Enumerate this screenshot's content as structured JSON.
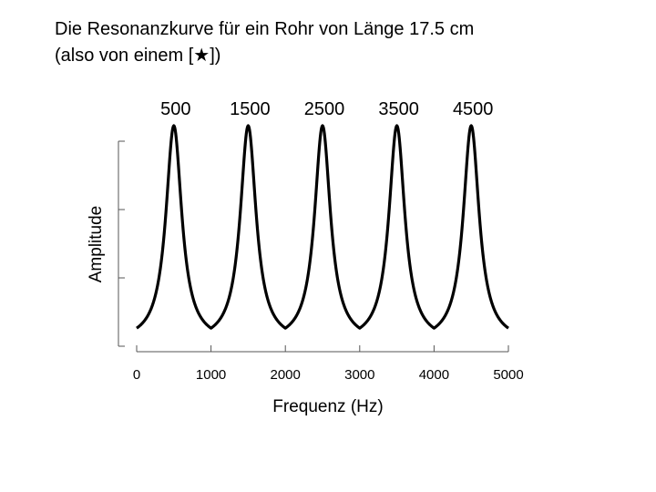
{
  "title": {
    "line1": "Die Resonanzkurve für ein Rohr von Länge 17.5 cm",
    "line2_prefix": "(also von einem [",
    "line2_symbol": "★",
    "line2_suffix": "])"
  },
  "chart_data": {
    "type": "line",
    "xlabel": "Frequenz (Hz)",
    "ylabel": "Amplitude",
    "xlim": [
      0,
      5000
    ],
    "ylim": [
      0,
      1
    ],
    "xticks": [
      0,
      1000,
      2000,
      3000,
      4000,
      5000
    ],
    "xtick_labels": [
      "0",
      "1000",
      "2000",
      "3000",
      "4000",
      "5000"
    ],
    "yticks_unlabeled": 4,
    "peak_frequencies": [
      500,
      1500,
      2500,
      3500,
      4500
    ],
    "peak_labels": [
      "500",
      "1500",
      "2500",
      "3500",
      "4500"
    ],
    "trough_frequencies": [
      0,
      1000,
      2000,
      3000,
      4000,
      5000
    ],
    "series": [
      {
        "color": "#000000",
        "x": [
          0,
          100,
          200,
          300,
          400,
          500,
          600,
          700,
          800,
          900,
          1000,
          1100,
          1200,
          1300,
          1400,
          1500,
          1600,
          1700,
          1800,
          1900,
          2000,
          2100,
          2200,
          2300,
          2400,
          2500,
          2600,
          2700,
          2800,
          2900,
          3000,
          3100,
          3200,
          3300,
          3400,
          3500,
          3600,
          3700,
          3800,
          3900,
          4000,
          4100,
          4200,
          4300,
          4400,
          4500,
          4600,
          4700,
          4800,
          4900,
          5000
        ],
        "y": [
          0.02,
          0.04,
          0.12,
          0.3,
          0.68,
          1.0,
          0.68,
          0.3,
          0.12,
          0.04,
          0.02,
          0.04,
          0.12,
          0.3,
          0.68,
          1.0,
          0.68,
          0.3,
          0.12,
          0.04,
          0.02,
          0.04,
          0.12,
          0.3,
          0.68,
          1.0,
          0.68,
          0.3,
          0.12,
          0.04,
          0.02,
          0.04,
          0.12,
          0.3,
          0.68,
          1.0,
          0.68,
          0.3,
          0.12,
          0.04,
          0.02,
          0.04,
          0.12,
          0.3,
          0.68,
          1.0,
          0.68,
          0.3,
          0.12,
          0.04,
          0.02
        ]
      }
    ]
  }
}
